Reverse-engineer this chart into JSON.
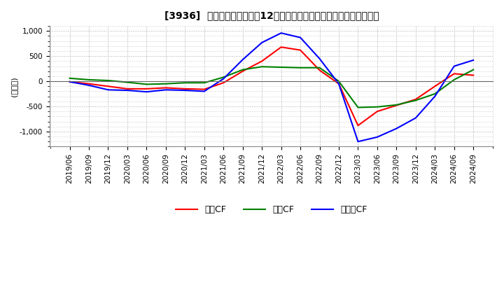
{
  "title": "[3936]  キャッシュフローの12か月移動合計の対前年同期増減額の推移",
  "ylabel": "(百万円)",
  "ylim": [
    -1300,
    1100
  ],
  "yticks": [
    -1000,
    -500,
    0,
    500,
    1000
  ],
  "dates": [
    "2019/06",
    "2019/09",
    "2019/12",
    "2020/03",
    "2020/06",
    "2020/09",
    "2020/12",
    "2021/03",
    "2021/06",
    "2021/09",
    "2021/12",
    "2022/03",
    "2022/06",
    "2022/09",
    "2022/12",
    "2023/03",
    "2023/06",
    "2023/09",
    "2023/12",
    "2024/03",
    "2024/06",
    "2024/09"
  ],
  "operating_cf": [
    -10,
    -50,
    -100,
    -150,
    -150,
    -130,
    -150,
    -160,
    -30,
    200,
    400,
    680,
    620,
    220,
    -50,
    -880,
    -600,
    -480,
    -360,
    -100,
    150,
    120
  ],
  "investing_cf": [
    60,
    30,
    15,
    -20,
    -60,
    -50,
    -30,
    -30,
    80,
    230,
    290,
    280,
    270,
    270,
    0,
    -520,
    -510,
    -470,
    -380,
    -250,
    30,
    230
  ],
  "free_cf": [
    -10,
    -80,
    -170,
    -180,
    -210,
    -170,
    -180,
    -200,
    50,
    430,
    770,
    960,
    870,
    450,
    -50,
    -1200,
    -1110,
    -940,
    -730,
    -300,
    300,
    420
  ],
  "operating_color": "#ff0000",
  "investing_color": "#008000",
  "free_color": "#0000ff",
  "background_color": "#ffffff",
  "grid_color": "#aaaaaa",
  "legend_labels": [
    "営業CF",
    "投資CF",
    "フリーCF"
  ]
}
